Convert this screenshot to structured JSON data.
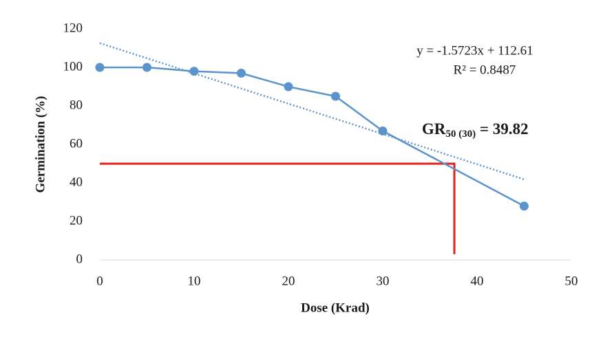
{
  "chart_data": {
    "type": "line",
    "x_label": "Dose (Krad)",
    "y_label": "Germination (%)",
    "x": [
      0,
      5,
      10,
      15,
      20,
      25,
      30,
      45
    ],
    "series": [
      {
        "name": "Germination",
        "color": "#5b93cc",
        "values": [
          100,
          100,
          98,
          97,
          90,
          85,
          67,
          28
        ]
      }
    ],
    "xlim": [
      0,
      50
    ],
    "xticks": [
      0,
      10,
      20,
      30,
      40,
      50
    ],
    "ylim": [
      0,
      120
    ],
    "yticks": [
      0,
      20,
      40,
      60,
      80,
      100,
      120
    ],
    "grid": false,
    "trendline": {
      "slope": -1.5723,
      "intercept": 112.61,
      "x_range": [
        0,
        45
      ],
      "color": "#5b93cc",
      "equation": "y = -1.5723x + 112.61",
      "r2": "R² = 0.8487"
    },
    "reference_line": {
      "x": 37.6,
      "y": 50,
      "y_end": 3,
      "color": "#e0201b"
    },
    "annotation": {
      "base": "GR",
      "sub": "50 (30)",
      "rest": " = 39.82"
    }
  }
}
